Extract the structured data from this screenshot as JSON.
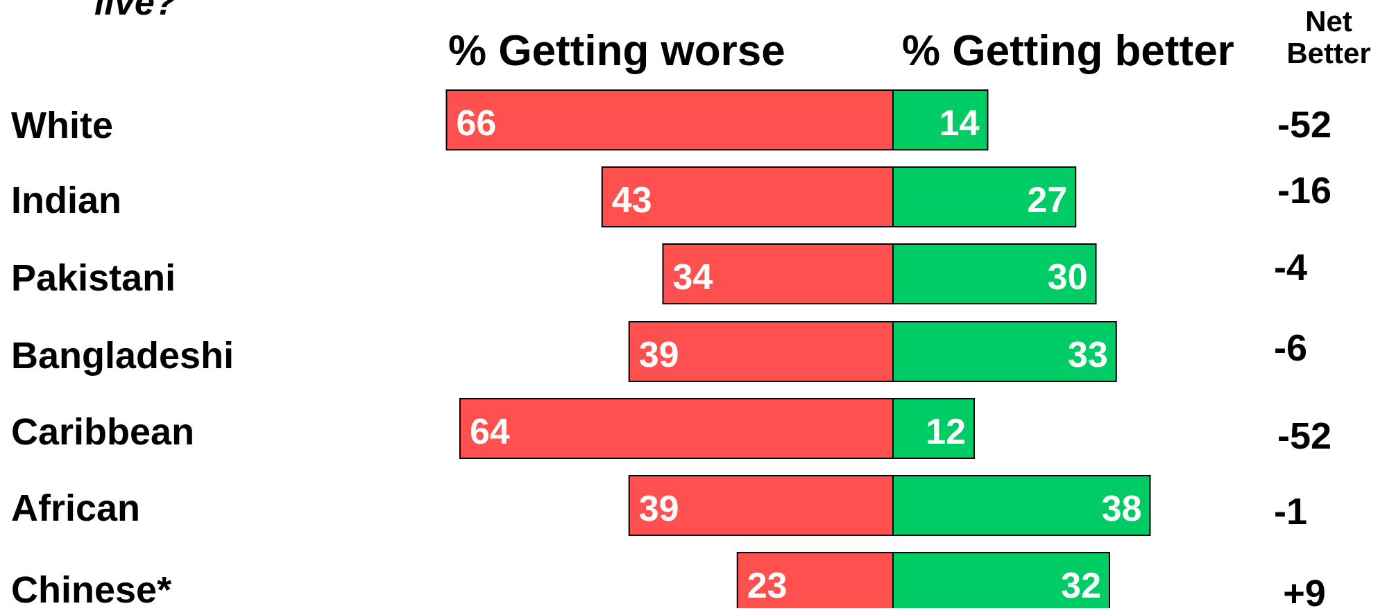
{
  "question_fragment": "live?",
  "headers": {
    "worse": "% Getting worse",
    "better": "% Getting better",
    "net_line1": "Net",
    "net_line2": "Better"
  },
  "colors": {
    "worse": "#ff5050",
    "better": "#00cc66",
    "bar_label": "#ffffff",
    "outline": "#000000"
  },
  "chart_data": {
    "type": "bar",
    "orientation": "horizontal-diverging",
    "categories": [
      "White",
      "Indian",
      "Pakistani",
      "Bangladeshi",
      "Caribbean",
      "African",
      "Chinese*"
    ],
    "series": [
      {
        "name": "% Getting worse",
        "values": [
          66,
          43,
          34,
          39,
          64,
          39,
          23
        ]
      },
      {
        "name": "% Getting better",
        "values": [
          14,
          27,
          30,
          33,
          12,
          38,
          32
        ]
      }
    ],
    "net_better": [
      "-52",
      "-16",
      "-4",
      "-6",
      "-52",
      "-1",
      "+9"
    ]
  }
}
